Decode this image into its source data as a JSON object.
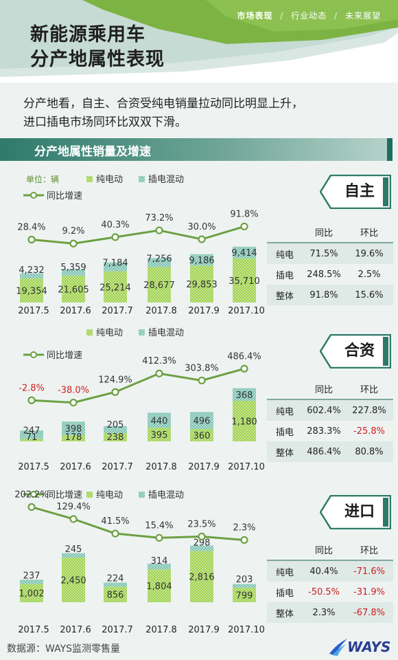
{
  "header": {
    "nav": {
      "active": "市场表现",
      "item2": "行业动态",
      "item3": "未来展望",
      "sep": "/"
    },
    "title_line1": "新能源乘用车",
    "title_line2": "分产地属性表现"
  },
  "intro": {
    "line1": "分产地看，自主、合资受纯电销量拉动同比明显上升，",
    "line2": "进口插电市场同环比双双下滑。"
  },
  "section_title": "分产地属性销量及增速",
  "colors": {
    "green_fill": "#9cd04a",
    "teal_fill": "#7bbfae",
    "line": "#6ca042",
    "negative": "#cc1e1e",
    "header_green": "#7cb342"
  },
  "legend": {
    "unit": "单位：辆",
    "bev": "纯电动",
    "phev": "插电混动",
    "yoy": "同比增速"
  },
  "chart_data": [
    {
      "type": "bar",
      "name": "自主",
      "categories": [
        "2017.5",
        "2017.6",
        "2017.7",
        "2017.8",
        "2017.9",
        "2017.10"
      ],
      "series": [
        {
          "name": "纯电动",
          "values": [
            19354,
            21605,
            25214,
            28677,
            29853,
            35710
          ],
          "labels": [
            "19,354",
            "21,605",
            "25,214",
            "28,677",
            "29,853",
            "35,710"
          ]
        },
        {
          "name": "插电混动",
          "values": [
            4232,
            5359,
            7184,
            7256,
            9186,
            9414
          ],
          "labels": [
            "4,232",
            "5,359",
            "7,184",
            "7,256",
            "9,186",
            "9,414"
          ]
        }
      ],
      "line": {
        "name": "同比增速",
        "values": [
          28.4,
          9.2,
          40.3,
          73.2,
          30.0,
          91.8
        ],
        "labels": [
          "28.4%",
          "9.2%",
          "40.3%",
          "73.2%",
          "30.0%",
          "91.8%"
        ]
      },
      "table": {
        "header": [
          "",
          "同比",
          "环比"
        ],
        "rows": [
          {
            "k": "纯电",
            "v1": "71.5%",
            "v2": "19.6%"
          },
          {
            "k": "插电",
            "v1": "248.5%",
            "v2": "2.5%"
          },
          {
            "k": "整体",
            "v1": "91.8%",
            "v2": "15.6%"
          }
        ]
      }
    },
    {
      "type": "bar",
      "name": "合资",
      "categories": [
        "2017.5",
        "2017.6",
        "2017.7",
        "2017.8",
        "2017.9",
        "2017.10"
      ],
      "series": [
        {
          "name": "纯电动",
          "values": [
            71,
            178,
            238,
            395,
            360,
            1180
          ],
          "labels": [
            "71",
            "178",
            "238",
            "395",
            "360",
            "1,180"
          ]
        },
        {
          "name": "插电混动",
          "values": [
            247,
            398,
            205,
            440,
            496,
            368
          ],
          "labels": [
            "247",
            "398",
            "205",
            "440",
            "496",
            "368"
          ]
        }
      ],
      "line": {
        "name": "同比增速",
        "values": [
          -2.8,
          -38.0,
          124.9,
          412.3,
          303.8,
          486.4
        ],
        "labels": [
          "-2.8%",
          "-38.0%",
          "124.9%",
          "412.3%",
          "303.8%",
          "486.4%"
        ]
      },
      "table": {
        "header": [
          "",
          "同比",
          "环比"
        ],
        "rows": [
          {
            "k": "纯电",
            "v1": "602.4%",
            "v2": "227.8%"
          },
          {
            "k": "插电",
            "v1": "283.3%",
            "v2": "-25.8%"
          },
          {
            "k": "整体",
            "v1": "486.4%",
            "v2": "80.8%"
          }
        ]
      }
    },
    {
      "type": "bar",
      "name": "进口",
      "categories": [
        "2017.5",
        "2017.6",
        "2017.7",
        "2017.8",
        "2017.9",
        "2017.10"
      ],
      "series": [
        {
          "name": "纯电动",
          "values": [
            1002,
            2450,
            856,
            1804,
            2816,
            799
          ],
          "labels": [
            "1,002",
            "2,450",
            "856",
            "1,804",
            "2,816",
            "799"
          ]
        },
        {
          "name": "插电混动",
          "values": [
            237,
            245,
            224,
            314,
            298,
            203
          ],
          "labels": [
            "237",
            "245",
            "224",
            "314",
            "298",
            "203"
          ]
        }
      ],
      "line": {
        "name": "同比增速",
        "values": [
          202.2,
          129.4,
          41.5,
          15.4,
          23.5,
          2.3
        ],
        "labels": [
          "202.2%",
          "129.4%",
          "41.5%",
          "15.4%",
          "23.5%",
          "2.3%"
        ]
      },
      "table": {
        "header": [
          "",
          "同比",
          "环比"
        ],
        "rows": [
          {
            "k": "纯电",
            "v1": "40.4%",
            "v2": "-71.6%"
          },
          {
            "k": "插电",
            "v1": "-50.5%",
            "v2": "-31.9%"
          },
          {
            "k": "整体",
            "v1": "2.3%",
            "v2": "-67.8%"
          }
        ]
      }
    }
  ],
  "footer": {
    "source": "数据源：WAYS监测零售量",
    "logo_text": "WAYS"
  }
}
